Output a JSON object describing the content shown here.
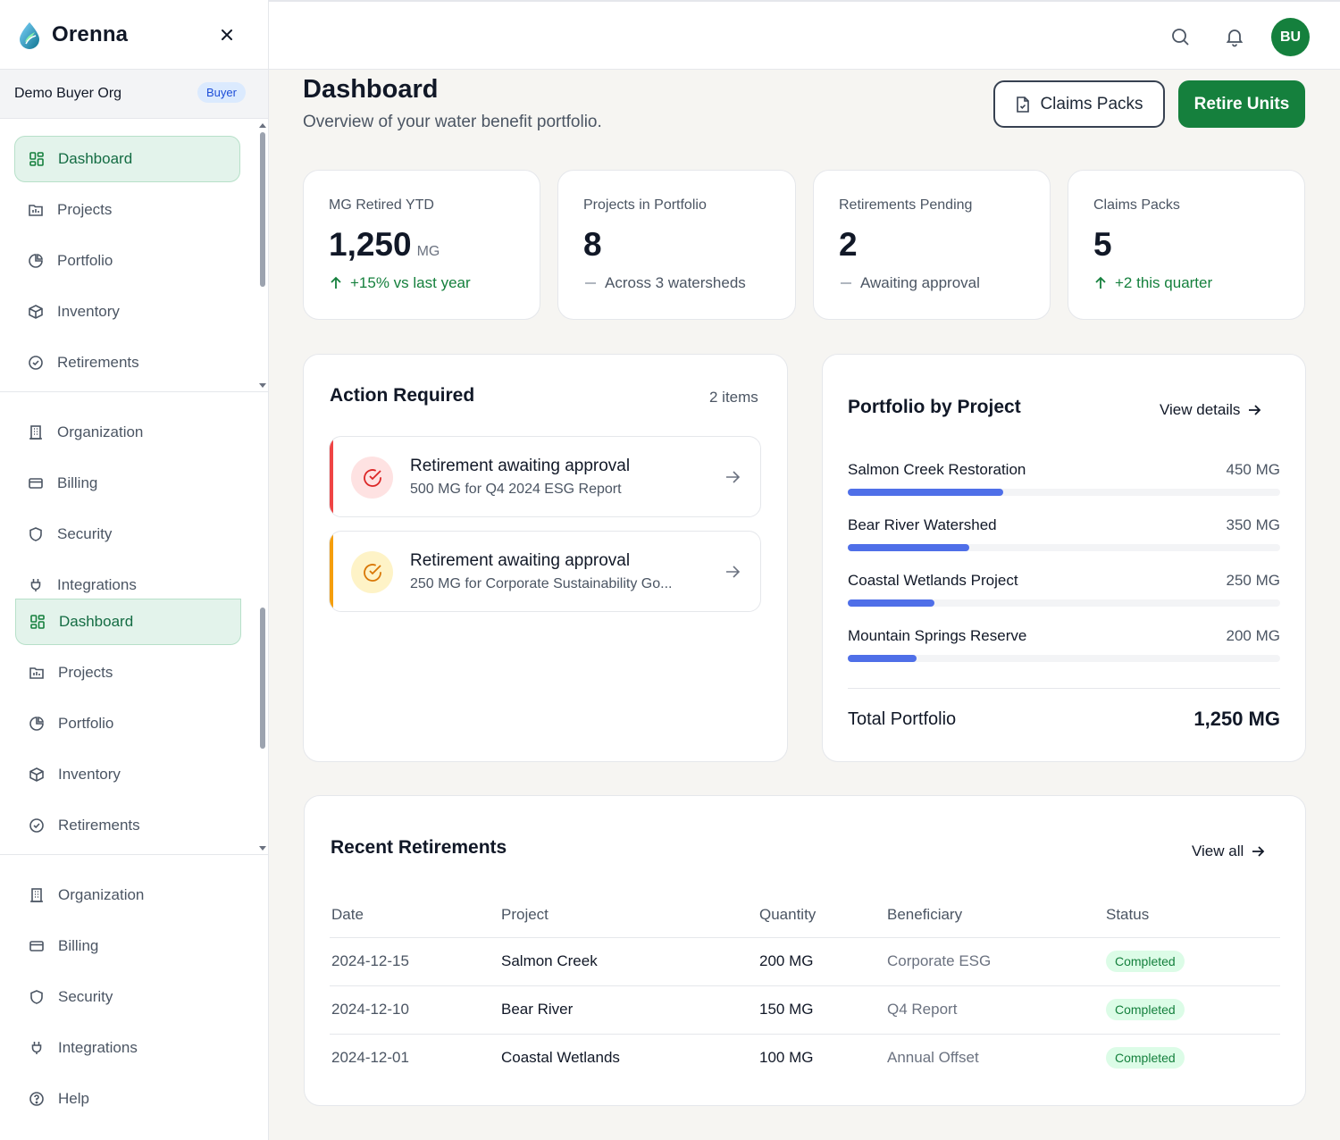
{
  "app": {
    "name": "Orenna",
    "org_name": "Demo Buyer Org",
    "org_role": "Buyer",
    "avatar_initials": "BU",
    "brand_color": "#15803d"
  },
  "sidebar": {
    "main_items": [
      {
        "label": "Dashboard",
        "icon": "grid-icon",
        "active": true
      },
      {
        "label": "Projects",
        "icon": "folder-icon"
      },
      {
        "label": "Portfolio",
        "icon": "pie-chart-icon"
      },
      {
        "label": "Inventory",
        "icon": "box-icon"
      },
      {
        "label": "Retirements",
        "icon": "check-circle-icon"
      }
    ],
    "settings_items": [
      {
        "label": "Organization",
        "icon": "building-icon"
      },
      {
        "label": "Billing",
        "icon": "credit-card-icon"
      },
      {
        "label": "Security",
        "icon": "shield-icon"
      },
      {
        "label": "Integrations",
        "icon": "plug-icon"
      }
    ],
    "duplicate_main_items": [
      {
        "label": "Dashboard",
        "icon": "grid-icon",
        "active": true
      },
      {
        "label": "Projects",
        "icon": "folder-icon"
      },
      {
        "label": "Portfolio",
        "icon": "pie-chart-icon"
      },
      {
        "label": "Inventory",
        "icon": "box-icon"
      },
      {
        "label": "Retirements",
        "icon": "check-circle-icon"
      }
    ],
    "duplicate_settings_items": [
      {
        "label": "Organization",
        "icon": "building-icon"
      },
      {
        "label": "Billing",
        "icon": "credit-card-icon"
      },
      {
        "label": "Security",
        "icon": "shield-icon"
      },
      {
        "label": "Integrations",
        "icon": "plug-icon"
      },
      {
        "label": "Help",
        "icon": "help-circle-icon"
      }
    ]
  },
  "header": {
    "title": "Dashboard",
    "subtitle": "Overview of your water benefit portfolio.",
    "claims_button": "Claims Packs",
    "retire_button": "Retire Units"
  },
  "stats": [
    {
      "label": "MG Retired YTD",
      "value": "1,250",
      "unit": "MG",
      "trend": "+15% vs last year",
      "trend_type": "up"
    },
    {
      "label": "Projects in Portfolio",
      "value": "8",
      "unit": "",
      "trend": "Across 3 watersheds",
      "trend_type": "neutral"
    },
    {
      "label": "Retirements Pending",
      "value": "2",
      "unit": "",
      "trend": "Awaiting approval",
      "trend_type": "neutral"
    },
    {
      "label": "Claims Packs",
      "value": "5",
      "unit": "",
      "trend": "+2 this quarter",
      "trend_type": "up"
    }
  ],
  "action_required": {
    "title": "Action Required",
    "count": "2 items",
    "items": [
      {
        "title": "Retirement awaiting approval",
        "subtitle": "500 MG for Q4 2024 ESG Report",
        "color": "#ef4444",
        "bg": "#fee2e2"
      },
      {
        "title": "Retirement awaiting approval",
        "subtitle": "250 MG for Corporate Sustainability Go...",
        "color": "#f59e0b",
        "bg": "#fef3c7"
      }
    ]
  },
  "portfolio": {
    "title": "Portfolio by Project",
    "view_details": "View details",
    "projects": [
      {
        "name": "Salmon Creek Restoration",
        "value": "450 MG",
        "fraction": 0.36
      },
      {
        "name": "Bear River Watershed",
        "value": "350 MG",
        "fraction": 0.28
      },
      {
        "name": "Coastal Wetlands Project",
        "value": "250 MG",
        "fraction": 0.2
      },
      {
        "name": "Mountain Springs Reserve",
        "value": "200 MG",
        "fraction": 0.16
      }
    ],
    "total_label": "Total Portfolio",
    "total_value": "1,250 MG",
    "bar_color": "#4f6fe8"
  },
  "recent": {
    "title": "Recent Retirements",
    "view_all": "View all",
    "columns": [
      "Date",
      "Project",
      "Quantity",
      "Beneficiary",
      "Status"
    ],
    "rows": [
      {
        "date": "2024-12-15",
        "project": "Salmon Creek",
        "quantity": "200 MG",
        "beneficiary": "Corporate ESG",
        "status": "Completed"
      },
      {
        "date": "2024-12-10",
        "project": "Bear River",
        "quantity": "150 MG",
        "beneficiary": "Q4 Report",
        "status": "Completed"
      },
      {
        "date": "2024-12-01",
        "project": "Coastal Wetlands",
        "quantity": "100 MG",
        "beneficiary": "Annual Offset",
        "status": "Completed"
      }
    ]
  }
}
